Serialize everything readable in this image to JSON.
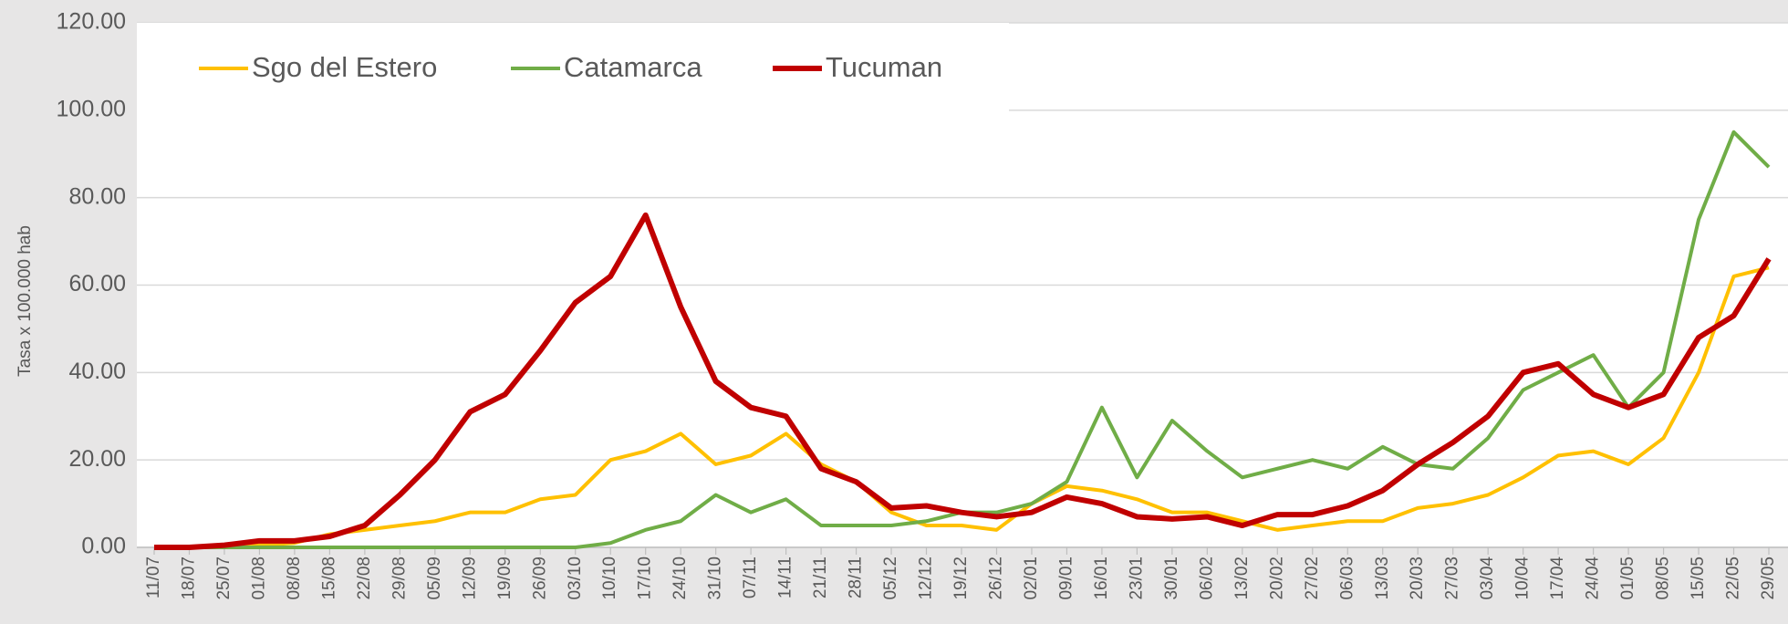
{
  "chart_data": {
    "type": "line",
    "y_label": "Tasa x 100.000 hab",
    "categories": [
      "11/07",
      "18/07",
      "25/07",
      "01/08",
      "08/08",
      "15/08",
      "22/08",
      "29/08",
      "05/09",
      "12/09",
      "19/09",
      "26/09",
      "03/10",
      "10/10",
      "17/10",
      "24/10",
      "31/10",
      "07/11",
      "14/11",
      "21/11",
      "28/11",
      "05/12",
      "12/12",
      "19/12",
      "26/12",
      "02/01",
      "09/01",
      "16/01",
      "23/01",
      "30/01",
      "06/02",
      "13/02",
      "20/02",
      "27/02",
      "06/03",
      "13/03",
      "20/03",
      "27/03",
      "03/04",
      "10/04",
      "17/04",
      "24/04",
      "01/05",
      "08/05",
      "15/05",
      "22/05",
      "29/05"
    ],
    "series": [
      {
        "name": "Sgo del Estero",
        "color": "#ffc000",
        "values": [
          0,
          0,
          0,
          0.5,
          1,
          3,
          4,
          5,
          6,
          8,
          8,
          11,
          12,
          20,
          22,
          26,
          19,
          21,
          26,
          19,
          15,
          8,
          5,
          5,
          4,
          10,
          14,
          13,
          11,
          8,
          8,
          6,
          4,
          5,
          6,
          6,
          9,
          10,
          12,
          16,
          21,
          22,
          19,
          25,
          40,
          62,
          64
        ]
      },
      {
        "name": "Catamarca",
        "color": "#70ad47",
        "values": [
          0,
          0,
          0,
          0,
          0,
          0,
          0,
          0,
          0,
          0,
          0,
          0,
          0,
          1,
          4,
          6,
          12,
          8,
          11,
          5,
          5,
          5,
          6,
          8,
          8,
          10,
          15,
          32,
          16,
          29,
          22,
          16,
          18,
          20,
          18,
          23,
          19,
          18,
          25,
          36,
          40,
          44,
          32,
          40,
          75,
          95,
          87
        ]
      },
      {
        "name": "Tucuman",
        "color": "#c00000",
        "values": [
          0,
          0,
          0.5,
          1.5,
          1.5,
          2.5,
          5,
          12,
          20,
          31,
          35,
          45,
          56,
          62,
          76,
          55,
          38,
          32,
          30,
          18,
          15,
          9,
          9.5,
          8,
          7,
          8,
          11.5,
          10,
          7,
          6.5,
          7,
          5,
          7.5,
          7.5,
          9.5,
          13,
          19,
          24,
          30,
          40,
          42,
          35,
          32,
          35,
          48,
          53,
          66
        ]
      }
    ],
    "ylim": [
      0,
      120
    ],
    "yticks": [
      {
        "value": 0,
        "label": "0.00"
      },
      {
        "value": 20,
        "label": "20.00"
      },
      {
        "value": 40,
        "label": "40.00"
      },
      {
        "value": 60,
        "label": "60.00"
      },
      {
        "value": 80,
        "label": "80.00"
      },
      {
        "value": 100,
        "label": "100.00"
      },
      {
        "value": 120,
        "label": "120.00"
      }
    ],
    "grid": true,
    "legend": "top-left"
  }
}
